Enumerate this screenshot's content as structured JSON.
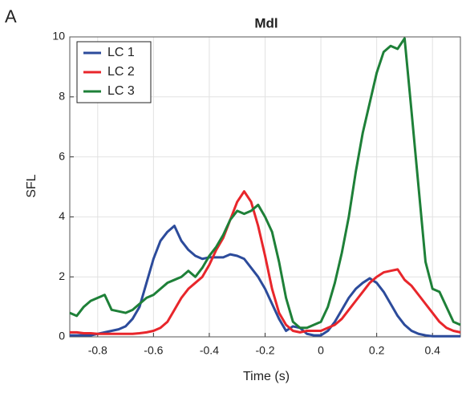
{
  "chart_data": {
    "type": "line",
    "panel_label": "A",
    "title": "Mdl",
    "xlabel": "Time (s)",
    "ylabel": "SFL",
    "x": [
      -0.9,
      -0.875,
      -0.85,
      -0.825,
      -0.8,
      -0.775,
      -0.75,
      -0.725,
      -0.7,
      -0.675,
      -0.65,
      -0.625,
      -0.6,
      -0.575,
      -0.55,
      -0.525,
      -0.5,
      -0.475,
      -0.45,
      -0.425,
      -0.4,
      -0.375,
      -0.35,
      -0.325,
      -0.3,
      -0.275,
      -0.25,
      -0.225,
      -0.2,
      -0.175,
      -0.15,
      -0.125,
      -0.1,
      -0.075,
      -0.05,
      -0.025,
      0,
      0.025,
      0.05,
      0.075,
      0.1,
      0.125,
      0.15,
      0.175,
      0.2,
      0.225,
      0.25,
      0.275,
      0.3,
      0.325,
      0.35,
      0.375,
      0.4,
      0.425,
      0.45,
      0.475,
      0.5
    ],
    "series": [
      {
        "name": "LC 1",
        "color": "#2c4b9b",
        "values": [
          0.05,
          0.05,
          0.05,
          0.05,
          0.1,
          0.15,
          0.2,
          0.25,
          0.35,
          0.6,
          1.0,
          1.8,
          2.6,
          3.2,
          3.5,
          3.7,
          3.2,
          2.9,
          2.7,
          2.6,
          2.65,
          2.65,
          2.65,
          2.75,
          2.7,
          2.6,
          2.3,
          2.0,
          1.6,
          1.1,
          0.6,
          0.2,
          0.35,
          0.3,
          0.1,
          0.05,
          0.05,
          0.2,
          0.5,
          0.9,
          1.3,
          1.6,
          1.8,
          1.95,
          1.8,
          1.5,
          1.1,
          0.7,
          0.4,
          0.2,
          0.1,
          0.05,
          0.02,
          0.02,
          0.02,
          0.02,
          0.02
        ]
      },
      {
        "name": "LC 2",
        "color": "#e8262b",
        "values": [
          0.15,
          0.15,
          0.12,
          0.12,
          0.1,
          0.1,
          0.1,
          0.1,
          0.1,
          0.1,
          0.12,
          0.15,
          0.2,
          0.3,
          0.5,
          0.9,
          1.3,
          1.6,
          1.8,
          2.0,
          2.4,
          2.9,
          3.3,
          3.9,
          4.5,
          4.85,
          4.5,
          3.7,
          2.7,
          1.6,
          0.8,
          0.4,
          0.2,
          0.15,
          0.2,
          0.2,
          0.2,
          0.3,
          0.4,
          0.6,
          0.9,
          1.2,
          1.5,
          1.8,
          2.0,
          2.15,
          2.2,
          2.25,
          1.9,
          1.7,
          1.4,
          1.1,
          0.8,
          0.5,
          0.3,
          0.2,
          0.15
        ]
      },
      {
        "name": "LC 3",
        "color": "#1e8038",
        "values": [
          0.8,
          0.7,
          1.0,
          1.2,
          1.3,
          1.4,
          0.9,
          0.85,
          0.8,
          0.9,
          1.1,
          1.3,
          1.4,
          1.6,
          1.8,
          1.9,
          2.0,
          2.2,
          2.0,
          2.3,
          2.7,
          3.0,
          3.4,
          3.9,
          4.2,
          4.1,
          4.2,
          4.4,
          4.0,
          3.5,
          2.5,
          1.3,
          0.5,
          0.3,
          0.3,
          0.4,
          0.5,
          1.0,
          1.8,
          2.8,
          4.0,
          5.5,
          6.8,
          7.8,
          8.8,
          9.5,
          9.7,
          9.6,
          9.95,
          7.5,
          5.0,
          2.5,
          1.6,
          1.5,
          1.0,
          0.5,
          0.4
        ]
      }
    ],
    "xlim": [
      -0.9,
      0.5
    ],
    "ylim": [
      0,
      10
    ],
    "xticks": [
      -0.8,
      -0.6,
      -0.4,
      -0.2,
      0,
      0.2,
      0.4
    ],
    "yticks": [
      0,
      2,
      4,
      6,
      8,
      10
    ],
    "grid": true,
    "legend": "upper left"
  }
}
